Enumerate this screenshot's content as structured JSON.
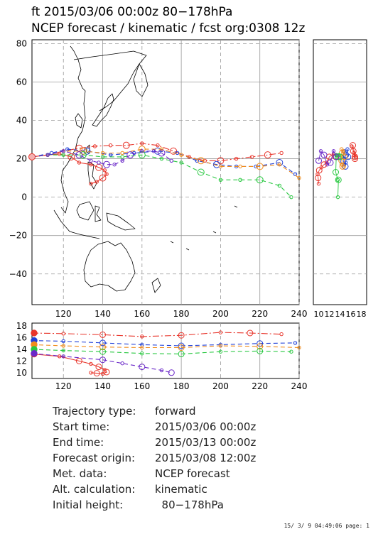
{
  "header": {
    "line1": "ft 2015/03/06 00:00z  80−178hPa",
    "line2": "NCEP forecast / kinematic / fcst org:0308 12z"
  },
  "colors": {
    "red": "#e8352b",
    "blue": "#2040d8",
    "orange": "#f08c1c",
    "green": "#28c840",
    "purple": "#6a28c8",
    "grid": "#9a9a9a",
    "coast": "#000000"
  },
  "chart_data": [
    {
      "type": "line",
      "name": "map",
      "x_ticks": [
        "120",
        "140",
        "160",
        "180",
        "200",
        "220",
        "240"
      ],
      "y_ticks": [
        "80",
        "60",
        "40",
        "20",
        "0",
        "−20",
        "−40"
      ],
      "xlim": [
        104,
        240
      ],
      "ylim": [
        -56,
        82
      ],
      "series": [
        {
          "color": "red",
          "dash": "dashdot",
          "points": [
            [
              104,
              21
            ],
            [
              112,
              22
            ],
            [
              120,
              24
            ],
            [
              128,
              25.5
            ],
            [
              136,
              26.5
            ],
            [
              144,
              27
            ],
            [
              152,
              27
            ],
            [
              160,
              28
            ],
            [
              168,
              27
            ],
            [
              176,
              24
            ],
            [
              184,
              21
            ],
            [
              192,
              19
            ],
            [
              200,
              19
            ],
            [
              208,
              20
            ],
            [
              216,
              21
            ],
            [
              224,
              22
            ],
            [
              231,
              23
            ]
          ]
        },
        {
          "color": "red",
          "dash": "solid",
          "points": [
            [
              104,
              21
            ],
            [
              112,
              22
            ],
            [
              118,
              22.5
            ],
            [
              124,
              21
            ],
            [
              128,
              18
            ],
            [
              134,
              17
            ],
            [
              138,
              15.5
            ],
            [
              141,
              14
            ],
            [
              142,
              12
            ],
            [
              140,
              10
            ],
            [
              137,
              8
            ],
            [
              134,
              7
            ]
          ]
        },
        {
          "color": "blue",
          "dash": "dashed",
          "points": [
            [
              104,
              21
            ],
            [
              114,
              23
            ],
            [
              122,
              25
            ],
            [
              132,
              24
            ],
            [
              144,
              22
            ],
            [
              156,
              23
            ],
            [
              168,
              24
            ],
            [
              178,
              23
            ],
            [
              188,
              19
            ],
            [
              198,
              17
            ],
            [
              208,
              16
            ],
            [
              218,
              16
            ],
            [
              230,
              18
            ],
            [
              238,
              12
            ]
          ]
        },
        {
          "color": "orange",
          "dash": "dashed",
          "points": [
            [
              104,
              21
            ],
            [
              112,
              22
            ],
            [
              120,
              24
            ],
            [
              130,
              24
            ],
            [
              140,
              23
            ],
            [
              150,
              23
            ],
            [
              160,
              25
            ],
            [
              170,
              25
            ],
            [
              180,
              22
            ],
            [
              190,
              19
            ],
            [
              200,
              16
            ],
            [
              210,
              16
            ],
            [
              220,
              16
            ],
            [
              230,
              17
            ],
            [
              240,
              10
            ]
          ]
        },
        {
          "color": "green",
          "dash": "dashed",
          "points": [
            [
              104,
              21
            ],
            [
              112,
              22
            ],
            [
              120,
              22
            ],
            [
              130,
              22
            ],
            [
              140,
              21
            ],
            [
              150,
              21
            ],
            [
              160,
              22
            ],
            [
              170,
              20
            ],
            [
              180,
              18
            ],
            [
              190,
              13
            ],
            [
              200,
              9
            ],
            [
              210,
              9
            ],
            [
              220,
              9
            ],
            [
              230,
              6
            ],
            [
              236,
              0
            ]
          ]
        },
        {
          "color": "purple",
          "dash": "dashed",
          "points": [
            [
              104,
              21
            ],
            [
              112,
              22
            ],
            [
              120,
              24
            ],
            [
              128,
              22
            ],
            [
              134,
              19
            ],
            [
              138,
              18
            ],
            [
              142,
              17
            ],
            [
              146,
              17
            ],
            [
              150,
              19
            ],
            [
              154,
              22
            ],
            [
              160,
              24
            ],
            [
              166,
              24
            ],
            [
              170,
              23
            ],
            [
              175,
              19
            ]
          ]
        }
      ]
    },
    {
      "type": "line",
      "name": "height_profile",
      "x_ticks": [
        "120",
        "140",
        "160",
        "180",
        "200",
        "220",
        "240"
      ],
      "y_ticks": [
        "18",
        "16",
        "14",
        "12",
        "10"
      ],
      "xlim": [
        104,
        240
      ],
      "ylim": [
        9,
        18.5
      ],
      "series": [
        {
          "color": "red",
          "dash": "dashdot",
          "points": [
            [
              104,
              16.8
            ],
            [
              120,
              16.7
            ],
            [
              140,
              16.5
            ],
            [
              160,
              16.2
            ],
            [
              180,
              16.4
            ],
            [
              200,
              16.9
            ],
            [
              215,
              16.8
            ],
            [
              231,
              16.6
            ]
          ]
        },
        {
          "color": "red",
          "dash": "solid",
          "points": [
            [
              104,
              13.2
            ],
            [
              118,
              12.8
            ],
            [
              128,
              12.0
            ],
            [
              134,
              11.5
            ],
            [
              138,
              11.0
            ],
            [
              141,
              10.5
            ],
            [
              142,
              10.1
            ],
            [
              140,
              9.8
            ],
            [
              137,
              9.9
            ],
            [
              134,
              10.0
            ]
          ]
        },
        {
          "color": "blue",
          "dash": "dashed",
          "points": [
            [
              104,
              15.5
            ],
            [
              120,
              15.4
            ],
            [
              140,
              15.1
            ],
            [
              160,
              14.8
            ],
            [
              180,
              14.6
            ],
            [
              200,
              14.8
            ],
            [
              220,
              15.0
            ],
            [
              238,
              15.1
            ]
          ]
        },
        {
          "color": "orange",
          "dash": "dashed",
          "points": [
            [
              104,
              14.8
            ],
            [
              120,
              14.6
            ],
            [
              140,
              14.4
            ],
            [
              160,
              14.3
            ],
            [
              180,
              14.3
            ],
            [
              200,
              14.6
            ],
            [
              220,
              14.5
            ],
            [
              240,
              14.3
            ]
          ]
        },
        {
          "color": "green",
          "dash": "dashed",
          "points": [
            [
              104,
              14.0
            ],
            [
              120,
              13.8
            ],
            [
              140,
              13.6
            ],
            [
              160,
              13.3
            ],
            [
              180,
              13.2
            ],
            [
              200,
              13.6
            ],
            [
              220,
              13.7
            ],
            [
              236,
              13.6
            ]
          ]
        },
        {
          "color": "purple",
          "dash": "dashed",
          "points": [
            [
              104,
              13.3
            ],
            [
              120,
              12.8
            ],
            [
              140,
              12.2
            ],
            [
              150,
              11.6
            ],
            [
              160,
              11.0
            ],
            [
              170,
              10.4
            ],
            [
              175,
              10.0
            ]
          ]
        }
      ]
    },
    {
      "type": "scatter",
      "name": "side_panel",
      "x_ticks": [
        "10",
        "12",
        "14",
        "16",
        "18"
      ],
      "xlim": [
        9,
        19
      ],
      "points": [
        {
          "color": "red",
          "x": [
            16.8,
            16.7,
            16.5,
            16.2,
            16.4,
            16.9,
            16.8,
            16.6
          ],
          "y": [
            21,
            22,
            24,
            26.5,
            27,
            21,
            20,
            23
          ]
        },
        {
          "color": "red",
          "x": [
            13.2,
            12.8,
            12.0,
            11.5,
            11.0,
            10.5,
            10.1,
            9.8,
            9.9,
            10.0
          ],
          "y": [
            21,
            22.5,
            21,
            18,
            17,
            15.5,
            14,
            12,
            10,
            7
          ]
        },
        {
          "color": "blue",
          "x": [
            15.5,
            15.4,
            15.1,
            14.8,
            14.6,
            14.8,
            15.0,
            15.1
          ],
          "y": [
            21,
            25,
            22,
            24,
            19,
            17,
            16,
            18
          ]
        },
        {
          "color": "orange",
          "x": [
            14.8,
            14.6,
            14.4,
            14.3,
            14.3,
            14.6,
            14.5,
            14.3
          ],
          "y": [
            21,
            24,
            23,
            25,
            19,
            16,
            16,
            17
          ]
        },
        {
          "color": "green",
          "x": [
            14.0,
            13.8,
            13.6,
            13.3,
            13.2,
            13.6,
            13.7,
            13.6
          ],
          "y": [
            21,
            22,
            21,
            22,
            13,
            9,
            9,
            0
          ]
        },
        {
          "color": "purple",
          "x": [
            13.3,
            12.8,
            12.2,
            11.6,
            11.0,
            10.4,
            10.0
          ],
          "y": [
            21,
            24,
            18,
            17,
            22,
            24,
            19
          ]
        }
      ]
    }
  ],
  "info": {
    "rows": [
      {
        "label": "Trajectory type:",
        "value": "forward"
      },
      {
        "label": "Start time:",
        "value": "2015/03/06 00:00z"
      },
      {
        "label": "End time:",
        "value": "2015/03/13 00:00z"
      },
      {
        "label": "Forecast origin:",
        "value": "2015/03/08 12:00z"
      },
      {
        "label": "Met. data:",
        "value": "NCEP forecast"
      },
      {
        "label": "Alt. calculation:",
        "value": "kinematic"
      },
      {
        "label": "Initial height:",
        "value": "  80−178hPa"
      }
    ]
  },
  "footer": "15/ 3/ 9 04:49:06 page: 1"
}
